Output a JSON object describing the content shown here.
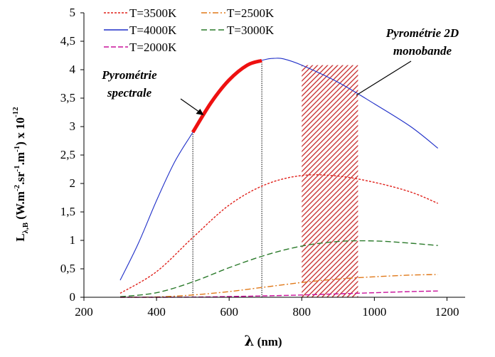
{
  "chart_data": {
    "type": "line",
    "title": "",
    "xlabel": "λ (nm)",
    "ylabel": "L λ,B (W.m-2.sr-1.m-1) x 10-12",
    "xlim": [
      200,
      1250
    ],
    "ylim": [
      0,
      5
    ],
    "xticks": [
      200,
      400,
      600,
      800,
      1000,
      1200
    ],
    "yticks": [
      0,
      0.5,
      1,
      1.5,
      2,
      2.5,
      3,
      3.5,
      4,
      4.5,
      5
    ],
    "ytick_labels": [
      "0",
      "0,5",
      "1",
      "1,5",
      "2",
      "2,5",
      "3",
      "3,5",
      "4",
      "4,5",
      "5"
    ],
    "grid": false,
    "legend_position": "top-left",
    "series": [
      {
        "name": "T=3500K",
        "color": "#e0201a",
        "dash": "3,2",
        "x": [
          300,
          400,
          500,
          600,
          700,
          800,
          900,
          1000,
          1100,
          1175
        ],
        "y": [
          0.07,
          0.45,
          1.05,
          1.62,
          1.98,
          2.14,
          2.13,
          2.02,
          1.85,
          1.65
        ]
      },
      {
        "name": "T=2500K",
        "color": "#e07818",
        "dash": "8,3,2,3",
        "x": [
          300,
          400,
          500,
          600,
          700,
          800,
          900,
          1000,
          1100,
          1175
        ],
        "y": [
          0.0,
          0.005,
          0.04,
          0.1,
          0.18,
          0.26,
          0.32,
          0.36,
          0.39,
          0.4
        ]
      },
      {
        "name": "T=4000K",
        "color": "#1f2fc8",
        "dash": "",
        "x": [
          300,
          350,
          400,
          450,
          500,
          550,
          600,
          650,
          700,
          725,
          750,
          800,
          900,
          1000,
          1100,
          1175
        ],
        "y": [
          0.3,
          0.95,
          1.7,
          2.38,
          2.9,
          3.42,
          3.82,
          4.08,
          4.18,
          4.2,
          4.19,
          4.08,
          3.78,
          3.4,
          3.0,
          2.62
        ]
      },
      {
        "name": "T=3000K",
        "color": "#2a7a2a",
        "dash": "8,4",
        "x": [
          300,
          400,
          500,
          600,
          700,
          800,
          900,
          1000,
          1100,
          1175
        ],
        "y": [
          0.01,
          0.08,
          0.27,
          0.52,
          0.74,
          0.9,
          0.98,
          0.99,
          0.95,
          0.91
        ]
      },
      {
        "name": "T=2000K",
        "color": "#c8109a",
        "dash": "7,3",
        "x": [
          300,
          400,
          500,
          600,
          700,
          800,
          900,
          1000,
          1100,
          1175
        ],
        "y": [
          0.0,
          0.0,
          0.003,
          0.012,
          0.025,
          0.04,
          0.06,
          0.08,
          0.1,
          0.11
        ]
      }
    ],
    "highlight_segment": {
      "x": [
        500,
        550,
        600,
        650,
        690
      ],
      "y": [
        2.9,
        3.42,
        3.82,
        4.08,
        4.16
      ],
      "color": "#ee1010"
    },
    "vertical_lines": [
      {
        "x": 500,
        "y_top": 2.9
      },
      {
        "x": 690,
        "y_top": 4.16
      }
    ],
    "hatched_band": {
      "x0": 800,
      "x1": 955,
      "color": "#c62828"
    },
    "annotations": [
      {
        "id": "spectral",
        "lines": [
          "Pyrométrie",
          "spectrale"
        ],
        "arrow_to": [
          530,
          3.2
        ]
      },
      {
        "id": "monoband",
        "lines": [
          "Pyrométrie 2D",
          "monobande"
        ],
        "arrow_to": [
          950,
          3.55
        ]
      }
    ]
  }
}
